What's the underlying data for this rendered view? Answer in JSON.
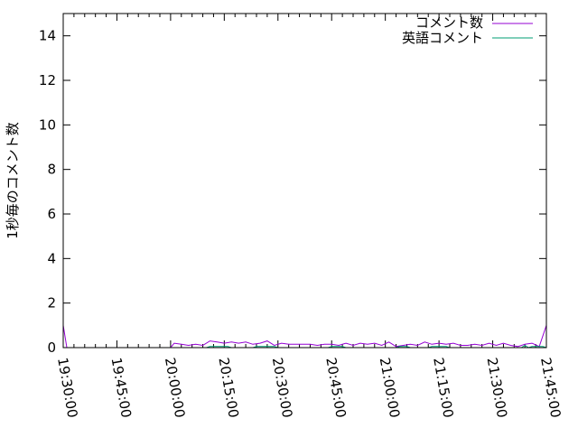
{
  "chart_data": {
    "type": "line",
    "title": "",
    "xlabel": "",
    "ylabel": "1秒毎のコメント数",
    "xlim": [
      "19:30:00",
      "21:45:00"
    ],
    "ylim": [
      0,
      15
    ],
    "x_ticks": [
      "19:30:00",
      "19:45:00",
      "20:00:00",
      "20:15:00",
      "20:30:00",
      "20:45:00",
      "21:00:00",
      "21:15:00",
      "21:30:00",
      "21:45:00"
    ],
    "y_ticks": [
      0,
      2,
      4,
      6,
      8,
      10,
      12,
      14
    ],
    "grid": false,
    "legend_position": "top-right",
    "series": [
      {
        "name": "コメント数",
        "color": "#9400d3",
        "points": [
          [
            "19:30:00",
            1.0
          ],
          [
            "19:31:00",
            0
          ],
          [
            "20:00:00",
            0
          ],
          [
            "20:01:00",
            0.2
          ],
          [
            "20:03:00",
            0.15
          ],
          [
            "20:05:00",
            0.1
          ],
          [
            "20:07:00",
            0.15
          ],
          [
            "20:09:00",
            0.1
          ],
          [
            "20:11:00",
            0.3
          ],
          [
            "20:13:00",
            0.25
          ],
          [
            "20:15:00",
            0.2
          ],
          [
            "20:17:00",
            0.25
          ],
          [
            "20:19:00",
            0.2
          ],
          [
            "20:21:00",
            0.25
          ],
          [
            "20:23:00",
            0.15
          ],
          [
            "20:25:00",
            0.2
          ],
          [
            "20:27:00",
            0.3
          ],
          [
            "20:29:00",
            0.1
          ],
          [
            "20:31:00",
            0.2
          ],
          [
            "20:33:00",
            0.15
          ],
          [
            "20:35:00",
            0.15
          ],
          [
            "20:37:00",
            0.15
          ],
          [
            "20:39:00",
            0.15
          ],
          [
            "20:41:00",
            0.1
          ],
          [
            "20:43:00",
            0.15
          ],
          [
            "20:45:00",
            0.15
          ],
          [
            "20:47:00",
            0.1
          ],
          [
            "20:49:00",
            0.2
          ],
          [
            "20:51:00",
            0.1
          ],
          [
            "20:53:00",
            0.2
          ],
          [
            "20:55:00",
            0.15
          ],
          [
            "20:57:00",
            0.2
          ],
          [
            "20:59:00",
            0.1
          ],
          [
            "21:01:00",
            0.25
          ],
          [
            "21:03:00",
            0.05
          ],
          [
            "21:05:00",
            0.1
          ],
          [
            "21:07:00",
            0.15
          ],
          [
            "21:09:00",
            0.1
          ],
          [
            "21:11:00",
            0.25
          ],
          [
            "21:13:00",
            0.15
          ],
          [
            "21:15:00",
            0.2
          ],
          [
            "21:17:00",
            0.15
          ],
          [
            "21:19:00",
            0.2
          ],
          [
            "21:21:00",
            0.1
          ],
          [
            "21:23:00",
            0.1
          ],
          [
            "21:25:00",
            0.15
          ],
          [
            "21:27:00",
            0.1
          ],
          [
            "21:29:00",
            0.2
          ],
          [
            "21:31:00",
            0.1
          ],
          [
            "21:33:00",
            0.2
          ],
          [
            "21:35:00",
            0.1
          ],
          [
            "21:37:00",
            0.05
          ],
          [
            "21:39:00",
            0.15
          ],
          [
            "21:41:00",
            0.2
          ],
          [
            "21:43:00",
            0.05
          ],
          [
            "21:45:00",
            1.0
          ]
        ]
      },
      {
        "name": "英語コメント",
        "color": "#009e73",
        "points": [
          [
            "19:30:00",
            0
          ],
          [
            "20:10:00",
            0
          ],
          [
            "20:11:00",
            0.05
          ],
          [
            "20:16:00",
            0.05
          ],
          [
            "20:17:00",
            0
          ],
          [
            "20:23:00",
            0
          ],
          [
            "20:24:00",
            0.05
          ],
          [
            "20:29:00",
            0.05
          ],
          [
            "20:30:00",
            0
          ],
          [
            "20:44:00",
            0
          ],
          [
            "20:45:00",
            0.05
          ],
          [
            "20:48:00",
            0.05
          ],
          [
            "20:49:00",
            0
          ],
          [
            "21:03:00",
            0
          ],
          [
            "21:04:00",
            0.05
          ],
          [
            "21:06:00",
            0.05
          ],
          [
            "21:07:00",
            0
          ],
          [
            "21:12:00",
            0
          ],
          [
            "21:13:00",
            0.05
          ],
          [
            "21:17:00",
            0.05
          ],
          [
            "21:18:00",
            0
          ],
          [
            "21:38:00",
            0
          ],
          [
            "21:39:00",
            0.1
          ],
          [
            "21:40:00",
            0
          ],
          [
            "21:41:00",
            0.05
          ],
          [
            "21:44:00",
            0.05
          ],
          [
            "21:45:00",
            0
          ]
        ]
      }
    ]
  }
}
